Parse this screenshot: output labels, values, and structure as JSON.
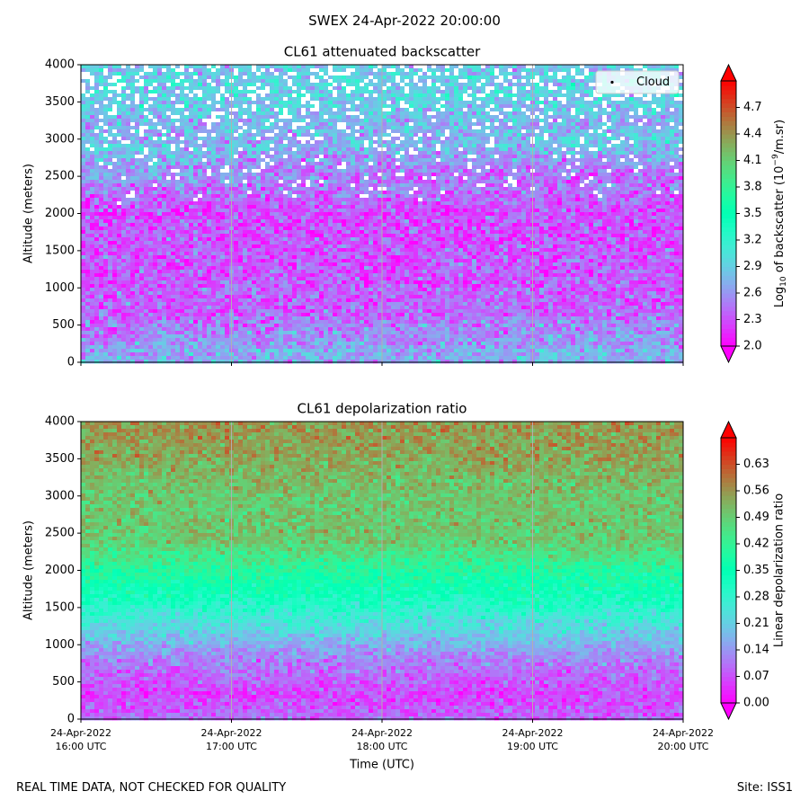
{
  "figure": {
    "suptitle": "SWEX 24-Apr-2022 20:00:00",
    "footer_left": "REAL TIME DATA, NOT CHECKED FOR QUALITY",
    "footer_right": "Site: ISS1",
    "xlabel": "Time (UTC)"
  },
  "chart_data": [
    {
      "type": "heatmap",
      "title": "CL61 attenuated backscatter",
      "ylabel": "Altitude (meters)",
      "colorbar_label": "Log10 of backscatter (10^-9/m.sr)",
      "colorbar_label_parts": {
        "pre": "Log",
        "sub": "10",
        "mid": " of backscatter (10",
        "sup": "−9",
        "post": "/m.sr)"
      },
      "colormap": "rainbow",
      "x_ticks": [
        "24-Apr-2022\n16:00 UTC",
        "24-Apr-2022\n17:00 UTC",
        "24-Apr-2022\n18:00 UTC",
        "24-Apr-2022\n19:00 UTC",
        "24-Apr-2022\n20:00 UTC"
      ],
      "x_range_hours_utc": [
        16,
        20
      ],
      "y_ticks": [
        0,
        500,
        1000,
        1500,
        2000,
        2500,
        3000,
        3500,
        4000
      ],
      "ylim": [
        0,
        4000
      ],
      "clim": [
        2.0,
        5.0
      ],
      "colorbar_ticks": [
        "2.0",
        "2.3",
        "2.6",
        "2.9",
        "3.2",
        "3.5",
        "3.8",
        "4.1",
        "4.4",
        "4.7"
      ],
      "colorbar_extend": "both",
      "legend": {
        "entries": [
          "Cloud"
        ],
        "placement": "top-right"
      },
      "grid": "x only",
      "profile_level_by_altitude": [
        {
          "alt": 0,
          "value": 2.7
        },
        {
          "alt": 150,
          "value": 2.75
        },
        {
          "alt": 300,
          "value": 2.55
        },
        {
          "alt": 600,
          "value": 2.4
        },
        {
          "alt": 1200,
          "value": 2.35
        },
        {
          "alt": 2000,
          "value": 2.3
        },
        {
          "alt": 2600,
          "value": 2.6
        },
        {
          "alt": 2900,
          "value": 2.9
        },
        {
          "alt": 3200,
          "value": 2.75
        },
        {
          "alt": 3600,
          "value": 2.95
        },
        {
          "alt": 4000,
          "value": 2.85
        }
      ]
    },
    {
      "type": "heatmap",
      "title": "CL61 depolarization ratio",
      "ylabel": "Altitude (meters)",
      "colorbar_label": "Linear depolarization ratio",
      "colormap": "rainbow",
      "x_ticks": [
        "24-Apr-2022\n16:00 UTC",
        "24-Apr-2022\n17:00 UTC",
        "24-Apr-2022\n18:00 UTC",
        "24-Apr-2022\n19:00 UTC",
        "24-Apr-2022\n20:00 UTC"
      ],
      "x_range_hours_utc": [
        16,
        20
      ],
      "y_ticks": [
        0,
        500,
        1000,
        1500,
        2000,
        2500,
        3000,
        3500,
        4000
      ],
      "ylim": [
        0,
        4000
      ],
      "clim": [
        0.0,
        0.7
      ],
      "colorbar_ticks": [
        "0.00",
        "0.07",
        "0.14",
        "0.21",
        "0.28",
        "0.35",
        "0.42",
        "0.49",
        "0.56",
        "0.63"
      ],
      "colorbar_extend": "both",
      "grid": "x only",
      "profile_level_by_altitude": [
        {
          "alt": 0,
          "value": 0.1
        },
        {
          "alt": 300,
          "value": 0.06
        },
        {
          "alt": 800,
          "value": 0.12
        },
        {
          "alt": 1200,
          "value": 0.22
        },
        {
          "alt": 1600,
          "value": 0.32
        },
        {
          "alt": 2000,
          "value": 0.4
        },
        {
          "alt": 2400,
          "value": 0.5
        },
        {
          "alt": 3000,
          "value": 0.5
        },
        {
          "alt": 3500,
          "value": 0.54
        },
        {
          "alt": 4000,
          "value": 0.56
        }
      ]
    }
  ]
}
